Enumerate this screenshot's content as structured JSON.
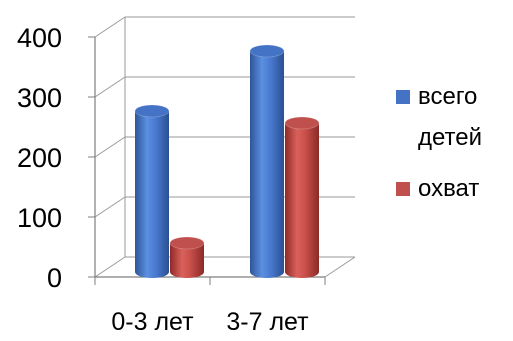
{
  "chart_data": {
    "type": "bar",
    "title": "",
    "xlabel": "",
    "ylabel": "",
    "categories": [
      "0-3 лет",
      "3-7 лет"
    ],
    "series": [
      {
        "name": "всего детей",
        "values": [
          280,
          380
        ],
        "color": "#4472C4"
      },
      {
        "name": "охват",
        "values": [
          60,
          260
        ],
        "color": "#C0504D"
      }
    ],
    "ylim": [
      0,
      400
    ],
    "yticks": [
      "0",
      "100",
      "200",
      "300",
      "400"
    ],
    "grid": true,
    "legend_position": "right",
    "legend_lines": [
      [
        "всего",
        "детей"
      ],
      [
        "охват"
      ]
    ],
    "three_d": true
  }
}
